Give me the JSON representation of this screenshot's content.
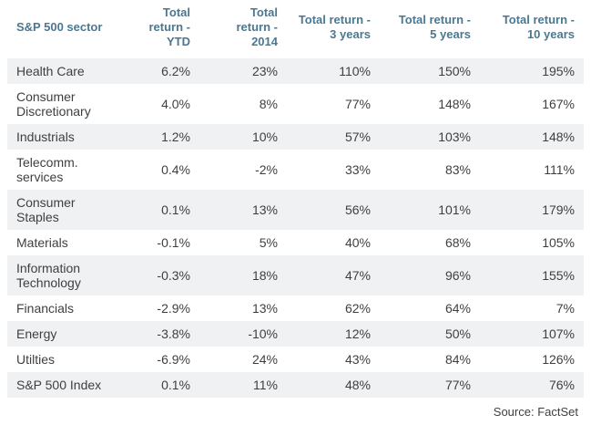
{
  "chart_data": {
    "type": "table",
    "columns": [
      "S&P 500 sector",
      "Total return - YTD",
      "Total return - 2014",
      "Total return - 3 years",
      "Total return - 5 years",
      "Total return - 10 years"
    ],
    "rows": [
      {
        "sector": "Health Care",
        "values": [
          "6.2%",
          "23%",
          "110%",
          "150%",
          "195%"
        ]
      },
      {
        "sector": "Consumer Discretionary",
        "values": [
          "4.0%",
          "8%",
          "77%",
          "148%",
          "167%"
        ]
      },
      {
        "sector": "Industrials",
        "values": [
          "1.2%",
          "10%",
          "57%",
          "103%",
          "148%"
        ]
      },
      {
        "sector": "Telecomm. services",
        "values": [
          "0.4%",
          "-2%",
          "33%",
          "83%",
          "111%"
        ]
      },
      {
        "sector": "Consumer Staples",
        "values": [
          "0.1%",
          "13%",
          "56%",
          "101%",
          "179%"
        ]
      },
      {
        "sector": "Materials",
        "values": [
          "-0.1%",
          "5%",
          "40%",
          "68%",
          "105%"
        ]
      },
      {
        "sector": "Information Technology",
        "values": [
          "-0.3%",
          "18%",
          "47%",
          "96%",
          "155%"
        ]
      },
      {
        "sector": "Financials",
        "values": [
          "-2.9%",
          "13%",
          "62%",
          "64%",
          "7%"
        ]
      },
      {
        "sector": "Energy",
        "values": [
          "-3.8%",
          "-10%",
          "12%",
          "50%",
          "107%"
        ]
      },
      {
        "sector": "Utilties",
        "values": [
          "-6.9%",
          "24%",
          "43%",
          "84%",
          "126%"
        ]
      },
      {
        "sector": "S&P 500 Index",
        "values": [
          "0.1%",
          "11%",
          "48%",
          "77%",
          "76%"
        ]
      }
    ],
    "source": "Source: FactSet",
    "layout": {
      "zebra_striping": true,
      "numeric_alignment": "right"
    }
  },
  "colors": {
    "header_text": "#4a7893",
    "body_text": "#3f3f3f",
    "stripe": "#f0f1f2",
    "background": "#ffffff"
  }
}
